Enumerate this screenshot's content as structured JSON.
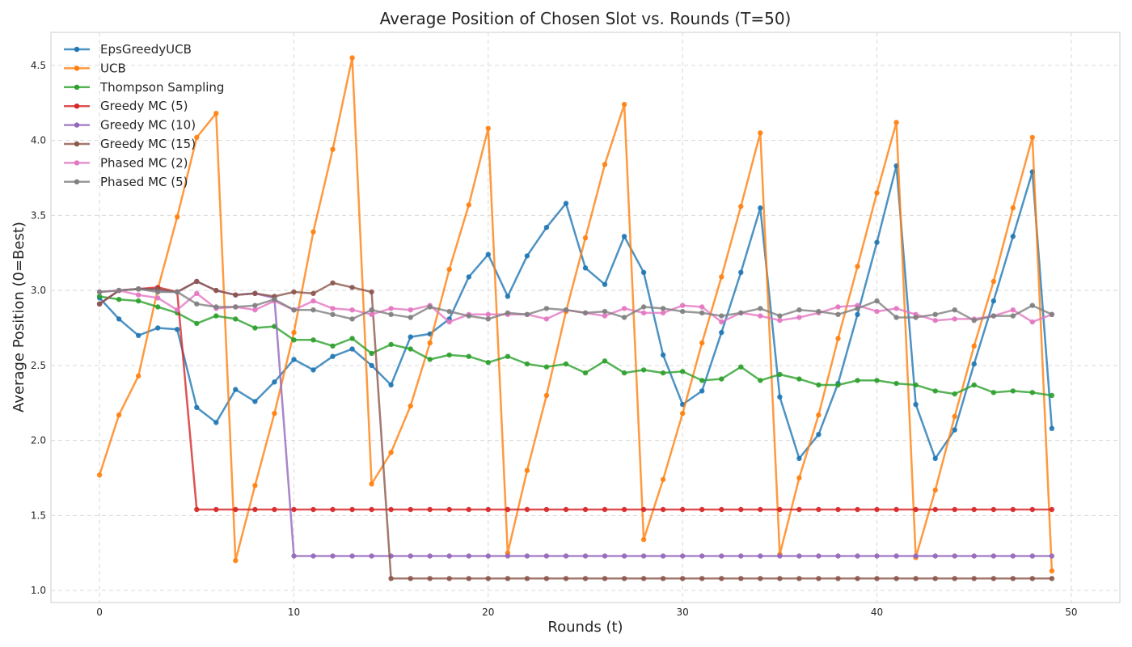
{
  "chart_data": {
    "type": "line",
    "title": "Average Position of Chosen Slot vs. Rounds (T=50)",
    "xlabel": "Rounds (t)",
    "ylabel": "Average Position (0=Best)",
    "xlim": [
      -2.5,
      52.5
    ],
    "ylim": [
      0.92,
      4.72
    ],
    "xticks": [
      0,
      10,
      20,
      30,
      40,
      50
    ],
    "yticks": [
      1.0,
      1.5,
      2.0,
      2.5,
      3.0,
      3.5,
      4.0,
      4.5
    ],
    "grid": true,
    "legend_position": "top-left",
    "x": [
      0,
      1,
      2,
      3,
      4,
      5,
      6,
      7,
      8,
      9,
      10,
      11,
      12,
      13,
      14,
      15,
      16,
      17,
      18,
      19,
      20,
      21,
      22,
      23,
      24,
      25,
      26,
      27,
      28,
      29,
      30,
      31,
      32,
      33,
      34,
      35,
      36,
      37,
      38,
      39,
      40,
      41,
      42,
      43,
      44,
      45,
      46,
      47,
      48,
      49
    ],
    "series": [
      {
        "name": "EpsGreedyUCB",
        "color": "#1f77b4",
        "values": [
          2.95,
          2.81,
          2.7,
          2.75,
          2.74,
          2.22,
          2.12,
          2.34,
          2.26,
          2.39,
          2.54,
          2.47,
          2.56,
          2.61,
          2.5,
          2.37,
          2.69,
          2.71,
          2.81,
          3.09,
          3.24,
          2.96,
          3.23,
          3.42,
          3.58,
          3.15,
          3.04,
          3.36,
          3.12,
          2.57,
          2.24,
          2.33,
          2.72,
          3.12,
          3.55,
          2.29,
          1.88,
          2.04,
          2.38,
          2.84,
          3.32,
          3.83,
          2.24,
          1.88,
          2.07,
          2.51,
          2.93,
          3.36,
          3.79,
          2.08
        ]
      },
      {
        "name": "UCB",
        "color": "#ff7f0e",
        "values": [
          1.77,
          2.17,
          2.43,
          3.01,
          3.49,
          4.02,
          4.18,
          1.2,
          1.7,
          2.18,
          2.72,
          3.39,
          3.94,
          4.55,
          1.71,
          1.92,
          2.23,
          2.65,
          3.14,
          3.57,
          4.08,
          1.25,
          1.8,
          2.3,
          2.86,
          3.35,
          3.84,
          4.24,
          1.34,
          1.74,
          2.18,
          2.65,
          3.09,
          3.56,
          4.05,
          1.24,
          1.75,
          2.17,
          2.68,
          3.16,
          3.65,
          4.12,
          1.22,
          1.67,
          2.16,
          2.63,
          3.06,
          3.55,
          4.02,
          1.13
        ]
      },
      {
        "name": "Thompson Sampling",
        "color": "#2ca02c",
        "values": [
          2.96,
          2.94,
          2.93,
          2.89,
          2.85,
          2.78,
          2.83,
          2.81,
          2.75,
          2.76,
          2.67,
          2.67,
          2.63,
          2.68,
          2.58,
          2.64,
          2.61,
          2.54,
          2.57,
          2.56,
          2.52,
          2.56,
          2.51,
          2.49,
          2.51,
          2.45,
          2.53,
          2.45,
          2.47,
          2.45,
          2.46,
          2.4,
          2.41,
          2.49,
          2.4,
          2.44,
          2.41,
          2.37,
          2.37,
          2.4,
          2.4,
          2.38,
          2.37,
          2.33,
          2.31,
          2.37,
          2.32,
          2.33,
          2.32,
          2.3
        ]
      },
      {
        "name": "Greedy MC (5)",
        "color": "#d62728",
        "values": [
          2.91,
          3.0,
          3.01,
          3.02,
          2.99,
          1.54,
          1.54,
          1.54,
          1.54,
          1.54,
          1.54,
          1.54,
          1.54,
          1.54,
          1.54,
          1.54,
          1.54,
          1.54,
          1.54,
          1.54,
          1.54,
          1.54,
          1.54,
          1.54,
          1.54,
          1.54,
          1.54,
          1.54,
          1.54,
          1.54,
          1.54,
          1.54,
          1.54,
          1.54,
          1.54,
          1.54,
          1.54,
          1.54,
          1.54,
          1.54,
          1.54,
          1.54,
          1.54,
          1.54,
          1.54,
          1.54,
          1.54,
          1.54,
          1.54,
          1.54
        ]
      },
      {
        "name": "Greedy MC (10)",
        "color": "#9467bd",
        "values": [
          2.91,
          3.0,
          3.01,
          3.0,
          2.99,
          3.06,
          3.0,
          2.97,
          2.98,
          2.95,
          1.23,
          1.23,
          1.23,
          1.23,
          1.23,
          1.23,
          1.23,
          1.23,
          1.23,
          1.23,
          1.23,
          1.23,
          1.23,
          1.23,
          1.23,
          1.23,
          1.23,
          1.23,
          1.23,
          1.23,
          1.23,
          1.23,
          1.23,
          1.23,
          1.23,
          1.23,
          1.23,
          1.23,
          1.23,
          1.23,
          1.23,
          1.23,
          1.23,
          1.23,
          1.23,
          1.23,
          1.23,
          1.23,
          1.23,
          1.23
        ]
      },
      {
        "name": "Greedy MC (15)",
        "color": "#8c564b",
        "values": [
          2.91,
          3.0,
          3.01,
          3.01,
          2.99,
          3.06,
          3.0,
          2.97,
          2.98,
          2.96,
          2.99,
          2.98,
          3.05,
          3.02,
          2.99,
          1.08,
          1.08,
          1.08,
          1.08,
          1.08,
          1.08,
          1.08,
          1.08,
          1.08,
          1.08,
          1.08,
          1.08,
          1.08,
          1.08,
          1.08,
          1.08,
          1.08,
          1.08,
          1.08,
          1.08,
          1.08,
          1.08,
          1.08,
          1.08,
          1.08,
          1.08,
          1.08,
          1.08,
          1.08,
          1.08,
          1.08,
          1.08,
          1.08,
          1.08,
          1.08
        ]
      },
      {
        "name": "Phased MC (2)",
        "color": "#e377c2",
        "values": [
          2.99,
          3.0,
          2.97,
          2.95,
          2.87,
          2.98,
          2.88,
          2.89,
          2.87,
          2.93,
          2.87,
          2.93,
          2.88,
          2.87,
          2.84,
          2.88,
          2.87,
          2.9,
          2.79,
          2.84,
          2.84,
          2.84,
          2.84,
          2.81,
          2.87,
          2.85,
          2.83,
          2.88,
          2.85,
          2.85,
          2.9,
          2.89,
          2.79,
          2.85,
          2.83,
          2.8,
          2.82,
          2.85,
          2.89,
          2.9,
          2.86,
          2.88,
          2.84,
          2.8,
          2.81,
          2.81,
          2.83,
          2.87,
          2.79,
          2.84
        ]
      },
      {
        "name": "Phased MC (5)",
        "color": "#7f7f7f",
        "values": [
          2.99,
          3.0,
          3.01,
          2.99,
          2.99,
          2.91,
          2.89,
          2.89,
          2.9,
          2.94,
          2.87,
          2.87,
          2.84,
          2.81,
          2.87,
          2.84,
          2.82,
          2.89,
          2.86,
          2.83,
          2.81,
          2.85,
          2.84,
          2.88,
          2.87,
          2.85,
          2.86,
          2.82,
          2.89,
          2.88,
          2.86,
          2.85,
          2.83,
          2.85,
          2.88,
          2.83,
          2.87,
          2.86,
          2.84,
          2.88,
          2.93,
          2.82,
          2.82,
          2.84,
          2.87,
          2.8,
          2.83,
          2.83,
          2.9,
          2.84
        ]
      }
    ]
  }
}
